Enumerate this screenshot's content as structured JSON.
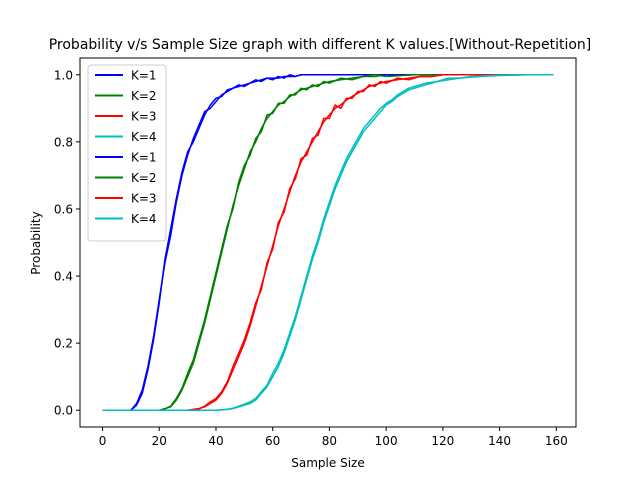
{
  "chart_data": {
    "type": "line",
    "title": "Probability v/s Sample Size graph with different K values.[Without-Repetition]",
    "xlabel": "Sample Size",
    "ylabel": "Probability",
    "xlim": [
      -7.95,
      166.95
    ],
    "ylim": [
      -0.05,
      1.05
    ],
    "xticks": [
      0,
      20,
      40,
      60,
      80,
      100,
      120,
      140,
      160
    ],
    "yticks": [
      0.0,
      0.2,
      0.4,
      0.6,
      0.8,
      1.0
    ],
    "ytick_labels": [
      "0.0",
      "0.2",
      "0.4",
      "0.6",
      "0.8",
      "1.0"
    ],
    "grid": false,
    "legend_position": "top-left",
    "series": [
      {
        "name": "K=1",
        "color": "#0000ff",
        "x": [
          0,
          10,
          12,
          14,
          16,
          18,
          20,
          22,
          24,
          26,
          28,
          30,
          32,
          34,
          36,
          38,
          40,
          42,
          44,
          46,
          48,
          50,
          52,
          54,
          56,
          58,
          60,
          62,
          64,
          66,
          68,
          70,
          74,
          78,
          82,
          86,
          90,
          95,
          100,
          110,
          120,
          140,
          159
        ],
        "y": [
          0,
          0,
          0.02,
          0.06,
          0.13,
          0.22,
          0.33,
          0.44,
          0.52,
          0.62,
          0.7,
          0.76,
          0.81,
          0.85,
          0.89,
          0.9,
          0.92,
          0.94,
          0.95,
          0.96,
          0.965,
          0.97,
          0.975,
          0.98,
          0.985,
          0.99,
          0.99,
          0.99,
          0.995,
          0.995,
          0.995,
          1.0,
          1.0,
          1.0,
          1.0,
          1.0,
          1.0,
          1.0,
          1.0,
          1.0,
          1.0,
          1.0,
          1.0
        ]
      },
      {
        "name": "K=2",
        "color": "#008000",
        "x": [
          0,
          20,
          22,
          24,
          26,
          28,
          30,
          32,
          34,
          36,
          38,
          40,
          42,
          44,
          46,
          48,
          50,
          52,
          54,
          56,
          58,
          60,
          62,
          64,
          66,
          68,
          70,
          72,
          74,
          76,
          78,
          80,
          84,
          88,
          92,
          96,
          100,
          110,
          120,
          140,
          159
        ],
        "y": [
          0,
          0,
          0.005,
          0.01,
          0.03,
          0.06,
          0.1,
          0.14,
          0.2,
          0.26,
          0.33,
          0.4,
          0.47,
          0.54,
          0.61,
          0.67,
          0.72,
          0.77,
          0.8,
          0.84,
          0.87,
          0.89,
          0.91,
          0.92,
          0.935,
          0.945,
          0.955,
          0.96,
          0.965,
          0.97,
          0.975,
          0.98,
          0.985,
          0.99,
          0.995,
          0.995,
          1.0,
          1.0,
          1.0,
          1.0,
          1.0
        ]
      },
      {
        "name": "K=3",
        "color": "#ff0000",
        "x": [
          0,
          30,
          34,
          36,
          38,
          40,
          42,
          44,
          46,
          48,
          50,
          52,
          54,
          56,
          58,
          60,
          62,
          64,
          66,
          68,
          70,
          72,
          74,
          76,
          78,
          80,
          82,
          84,
          86,
          88,
          90,
          92,
          94,
          96,
          98,
          100,
          104,
          108,
          112,
          116,
          120,
          130,
          140,
          159
        ],
        "y": [
          0,
          0,
          0.005,
          0.01,
          0.02,
          0.03,
          0.05,
          0.08,
          0.12,
          0.16,
          0.2,
          0.25,
          0.31,
          0.37,
          0.43,
          0.49,
          0.55,
          0.6,
          0.65,
          0.7,
          0.74,
          0.77,
          0.8,
          0.83,
          0.86,
          0.88,
          0.9,
          0.91,
          0.925,
          0.935,
          0.945,
          0.955,
          0.965,
          0.97,
          0.975,
          0.98,
          0.985,
          0.99,
          0.995,
          0.995,
          1.0,
          1.0,
          1.0,
          1.0
        ]
      },
      {
        "name": "K=4",
        "color": "#00bfbf",
        "x": [
          0,
          40,
          44,
          46,
          48,
          50,
          52,
          54,
          56,
          58,
          60,
          62,
          64,
          66,
          68,
          70,
          72,
          74,
          76,
          78,
          80,
          82,
          84,
          86,
          88,
          90,
          92,
          94,
          96,
          98,
          100,
          102,
          104,
          106,
          108,
          110,
          114,
          118,
          122,
          126,
          130,
          135,
          140,
          150,
          159
        ],
        "y": [
          0,
          0,
          0.002,
          0.005,
          0.01,
          0.015,
          0.02,
          0.03,
          0.05,
          0.07,
          0.1,
          0.13,
          0.17,
          0.22,
          0.27,
          0.33,
          0.39,
          0.45,
          0.5,
          0.56,
          0.61,
          0.66,
          0.7,
          0.74,
          0.77,
          0.8,
          0.83,
          0.85,
          0.87,
          0.89,
          0.91,
          0.92,
          0.935,
          0.945,
          0.955,
          0.96,
          0.97,
          0.98,
          0.985,
          0.99,
          0.993,
          0.996,
          0.998,
          1.0,
          1.0
        ]
      },
      {
        "name": "K=1",
        "color": "#0000ff",
        "x": [
          0,
          10,
          12,
          14,
          16,
          18,
          20,
          22,
          24,
          26,
          28,
          30,
          32,
          34,
          36,
          38,
          40,
          42,
          44,
          46,
          48,
          50,
          52,
          54,
          56,
          58,
          60,
          62,
          64,
          66,
          68,
          70,
          74,
          78,
          82,
          86,
          90,
          95,
          100,
          110,
          120,
          140,
          159
        ],
        "y": [
          0,
          0,
          0.015,
          0.05,
          0.12,
          0.21,
          0.32,
          0.45,
          0.54,
          0.63,
          0.71,
          0.77,
          0.8,
          0.84,
          0.88,
          0.91,
          0.93,
          0.935,
          0.955,
          0.96,
          0.97,
          0.965,
          0.975,
          0.985,
          0.98,
          0.99,
          0.985,
          0.995,
          0.99,
          1.0,
          0.995,
          1.0,
          1.0,
          1.0,
          1.0,
          1.0,
          1.0,
          1.0,
          1.0,
          1.0,
          1.0,
          1.0,
          1.0
        ]
      },
      {
        "name": "K=2",
        "color": "#008000",
        "x": [
          0,
          20,
          22,
          24,
          26,
          28,
          30,
          32,
          34,
          36,
          38,
          40,
          42,
          44,
          46,
          48,
          50,
          52,
          54,
          56,
          58,
          60,
          62,
          64,
          66,
          68,
          70,
          72,
          74,
          76,
          78,
          80,
          84,
          88,
          92,
          96,
          100,
          110,
          120,
          140,
          159
        ],
        "y": [
          0,
          0,
          0.004,
          0.012,
          0.035,
          0.065,
          0.11,
          0.15,
          0.21,
          0.27,
          0.34,
          0.41,
          0.48,
          0.55,
          0.6,
          0.68,
          0.73,
          0.76,
          0.81,
          0.83,
          0.88,
          0.885,
          0.915,
          0.915,
          0.94,
          0.94,
          0.96,
          0.955,
          0.97,
          0.965,
          0.98,
          0.975,
          0.99,
          0.985,
          0.995,
          1.0,
          0.995,
          1.0,
          1.0,
          1.0,
          1.0
        ]
      },
      {
        "name": "K=3",
        "color": "#ff0000",
        "x": [
          0,
          30,
          34,
          36,
          38,
          40,
          42,
          44,
          46,
          48,
          50,
          52,
          54,
          56,
          58,
          60,
          62,
          64,
          66,
          68,
          70,
          72,
          74,
          76,
          78,
          80,
          82,
          84,
          86,
          88,
          90,
          92,
          94,
          96,
          98,
          100,
          104,
          108,
          112,
          116,
          120,
          130,
          140,
          159
        ],
        "y": [
          0,
          0,
          0.004,
          0.012,
          0.025,
          0.035,
          0.055,
          0.085,
          0.13,
          0.17,
          0.21,
          0.26,
          0.32,
          0.36,
          0.44,
          0.48,
          0.56,
          0.59,
          0.66,
          0.69,
          0.75,
          0.76,
          0.81,
          0.82,
          0.87,
          0.87,
          0.91,
          0.9,
          0.93,
          0.93,
          0.95,
          0.95,
          0.97,
          0.965,
          0.98,
          0.975,
          0.99,
          0.985,
          0.995,
          0.995,
          1.0,
          1.0,
          1.0,
          1.0
        ]
      },
      {
        "name": "K=4",
        "color": "#00bfbf",
        "x": [
          0,
          40,
          44,
          46,
          48,
          50,
          52,
          54,
          56,
          58,
          60,
          62,
          64,
          66,
          68,
          70,
          72,
          74,
          76,
          78,
          80,
          82,
          84,
          86,
          88,
          90,
          92,
          94,
          96,
          98,
          100,
          102,
          104,
          106,
          108,
          110,
          114,
          118,
          122,
          126,
          130,
          135,
          140,
          150,
          159
        ],
        "y": [
          0,
          0,
          0.003,
          0.006,
          0.012,
          0.018,
          0.025,
          0.035,
          0.055,
          0.075,
          0.11,
          0.14,
          0.18,
          0.23,
          0.28,
          0.34,
          0.4,
          0.46,
          0.51,
          0.57,
          0.62,
          0.67,
          0.71,
          0.75,
          0.78,
          0.81,
          0.84,
          0.86,
          0.88,
          0.9,
          0.915,
          0.925,
          0.94,
          0.95,
          0.96,
          0.965,
          0.975,
          0.98,
          0.99,
          0.99,
          0.995,
          0.997,
          0.999,
          1.0,
          1.0
        ]
      }
    ]
  }
}
